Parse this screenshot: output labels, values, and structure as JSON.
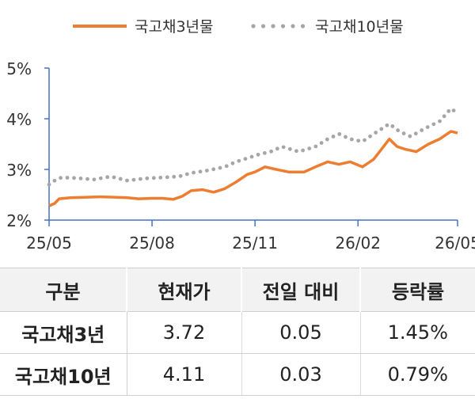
{
  "chart_data": {
    "type": "line",
    "legend_position": "top",
    "grid": false,
    "x_ticks": [
      "25/05",
      "25/08",
      "25/11",
      "26/02",
      "26/05"
    ],
    "y_ticks": [
      "2%",
      "3%",
      "4%",
      "5%"
    ],
    "ylim": [
      2,
      5
    ],
    "series": [
      {
        "name": "국고채3년물",
        "style": "solid",
        "color": "#ED7D31",
        "points": [
          [
            "2025-05-01",
            2.28
          ],
          [
            "2025-05-06",
            2.33
          ],
          [
            "2025-05-10",
            2.42
          ],
          [
            "2025-05-20",
            2.44
          ],
          [
            "2025-06-01",
            2.45
          ],
          [
            "2025-06-15",
            2.46
          ],
          [
            "2025-07-01",
            2.45
          ],
          [
            "2025-07-10",
            2.44
          ],
          [
            "2025-07-20",
            2.42
          ],
          [
            "2025-08-01",
            2.43
          ],
          [
            "2025-08-10",
            2.43
          ],
          [
            "2025-08-20",
            2.41
          ],
          [
            "2025-08-28",
            2.47
          ],
          [
            "2025-09-05",
            2.58
          ],
          [
            "2025-09-15",
            2.6
          ],
          [
            "2025-09-25",
            2.55
          ],
          [
            "2025-10-05",
            2.62
          ],
          [
            "2025-10-15",
            2.75
          ],
          [
            "2025-10-25",
            2.9
          ],
          [
            "2025-11-01",
            2.95
          ],
          [
            "2025-11-10",
            3.05
          ],
          [
            "2025-11-20",
            3.0
          ],
          [
            "2025-12-01",
            2.95
          ],
          [
            "2025-12-15",
            2.95
          ],
          [
            "2025-12-25",
            3.05
          ],
          [
            "2026-01-05",
            3.15
          ],
          [
            "2026-01-15",
            3.1
          ],
          [
            "2026-01-25",
            3.15
          ],
          [
            "2026-02-05",
            3.05
          ],
          [
            "2026-02-15",
            3.2
          ],
          [
            "2026-02-22",
            3.4
          ],
          [
            "2026-03-01",
            3.6
          ],
          [
            "2026-03-08",
            3.45
          ],
          [
            "2026-03-15",
            3.4
          ],
          [
            "2026-03-25",
            3.35
          ],
          [
            "2026-04-05",
            3.5
          ],
          [
            "2026-04-15",
            3.6
          ],
          [
            "2026-04-25",
            3.75
          ],
          [
            "2026-05-01",
            3.72
          ]
        ]
      },
      {
        "name": "국고채10년물",
        "style": "dotted",
        "color": "#A6A6A6",
        "points": [
          [
            "2025-05-01",
            2.7
          ],
          [
            "2025-05-06",
            2.78
          ],
          [
            "2025-05-12",
            2.84
          ],
          [
            "2025-05-25",
            2.83
          ],
          [
            "2025-06-10",
            2.8
          ],
          [
            "2025-06-25",
            2.86
          ],
          [
            "2025-07-10",
            2.78
          ],
          [
            "2025-07-25",
            2.82
          ],
          [
            "2025-08-10",
            2.84
          ],
          [
            "2025-08-25",
            2.86
          ],
          [
            "2025-09-05",
            2.93
          ],
          [
            "2025-09-20",
            2.98
          ],
          [
            "2025-10-05",
            3.05
          ],
          [
            "2025-10-15",
            3.15
          ],
          [
            "2025-10-25",
            3.22
          ],
          [
            "2025-11-05",
            3.3
          ],
          [
            "2025-11-15",
            3.35
          ],
          [
            "2025-11-25",
            3.45
          ],
          [
            "2025-12-10",
            3.35
          ],
          [
            "2025-12-25",
            3.45
          ],
          [
            "2026-01-05",
            3.6
          ],
          [
            "2026-01-15",
            3.7
          ],
          [
            "2026-01-25",
            3.6
          ],
          [
            "2026-02-05",
            3.55
          ],
          [
            "2026-02-15",
            3.7
          ],
          [
            "2026-02-22",
            3.8
          ],
          [
            "2026-03-01",
            3.9
          ],
          [
            "2026-03-10",
            3.75
          ],
          [
            "2026-03-20",
            3.65
          ],
          [
            "2026-04-01",
            3.8
          ],
          [
            "2026-04-15",
            3.95
          ],
          [
            "2026-04-25",
            4.2
          ],
          [
            "2026-05-01",
            4.11
          ]
        ]
      }
    ]
  },
  "table": {
    "headers": [
      "구분",
      "현재가",
      "전일 대비",
      "등락률"
    ],
    "rows": [
      [
        "국고채3년",
        "3.72",
        "0.05",
        "1.45%"
      ],
      [
        "국고채10년",
        "4.11",
        "0.03",
        "0.79%"
      ]
    ]
  }
}
